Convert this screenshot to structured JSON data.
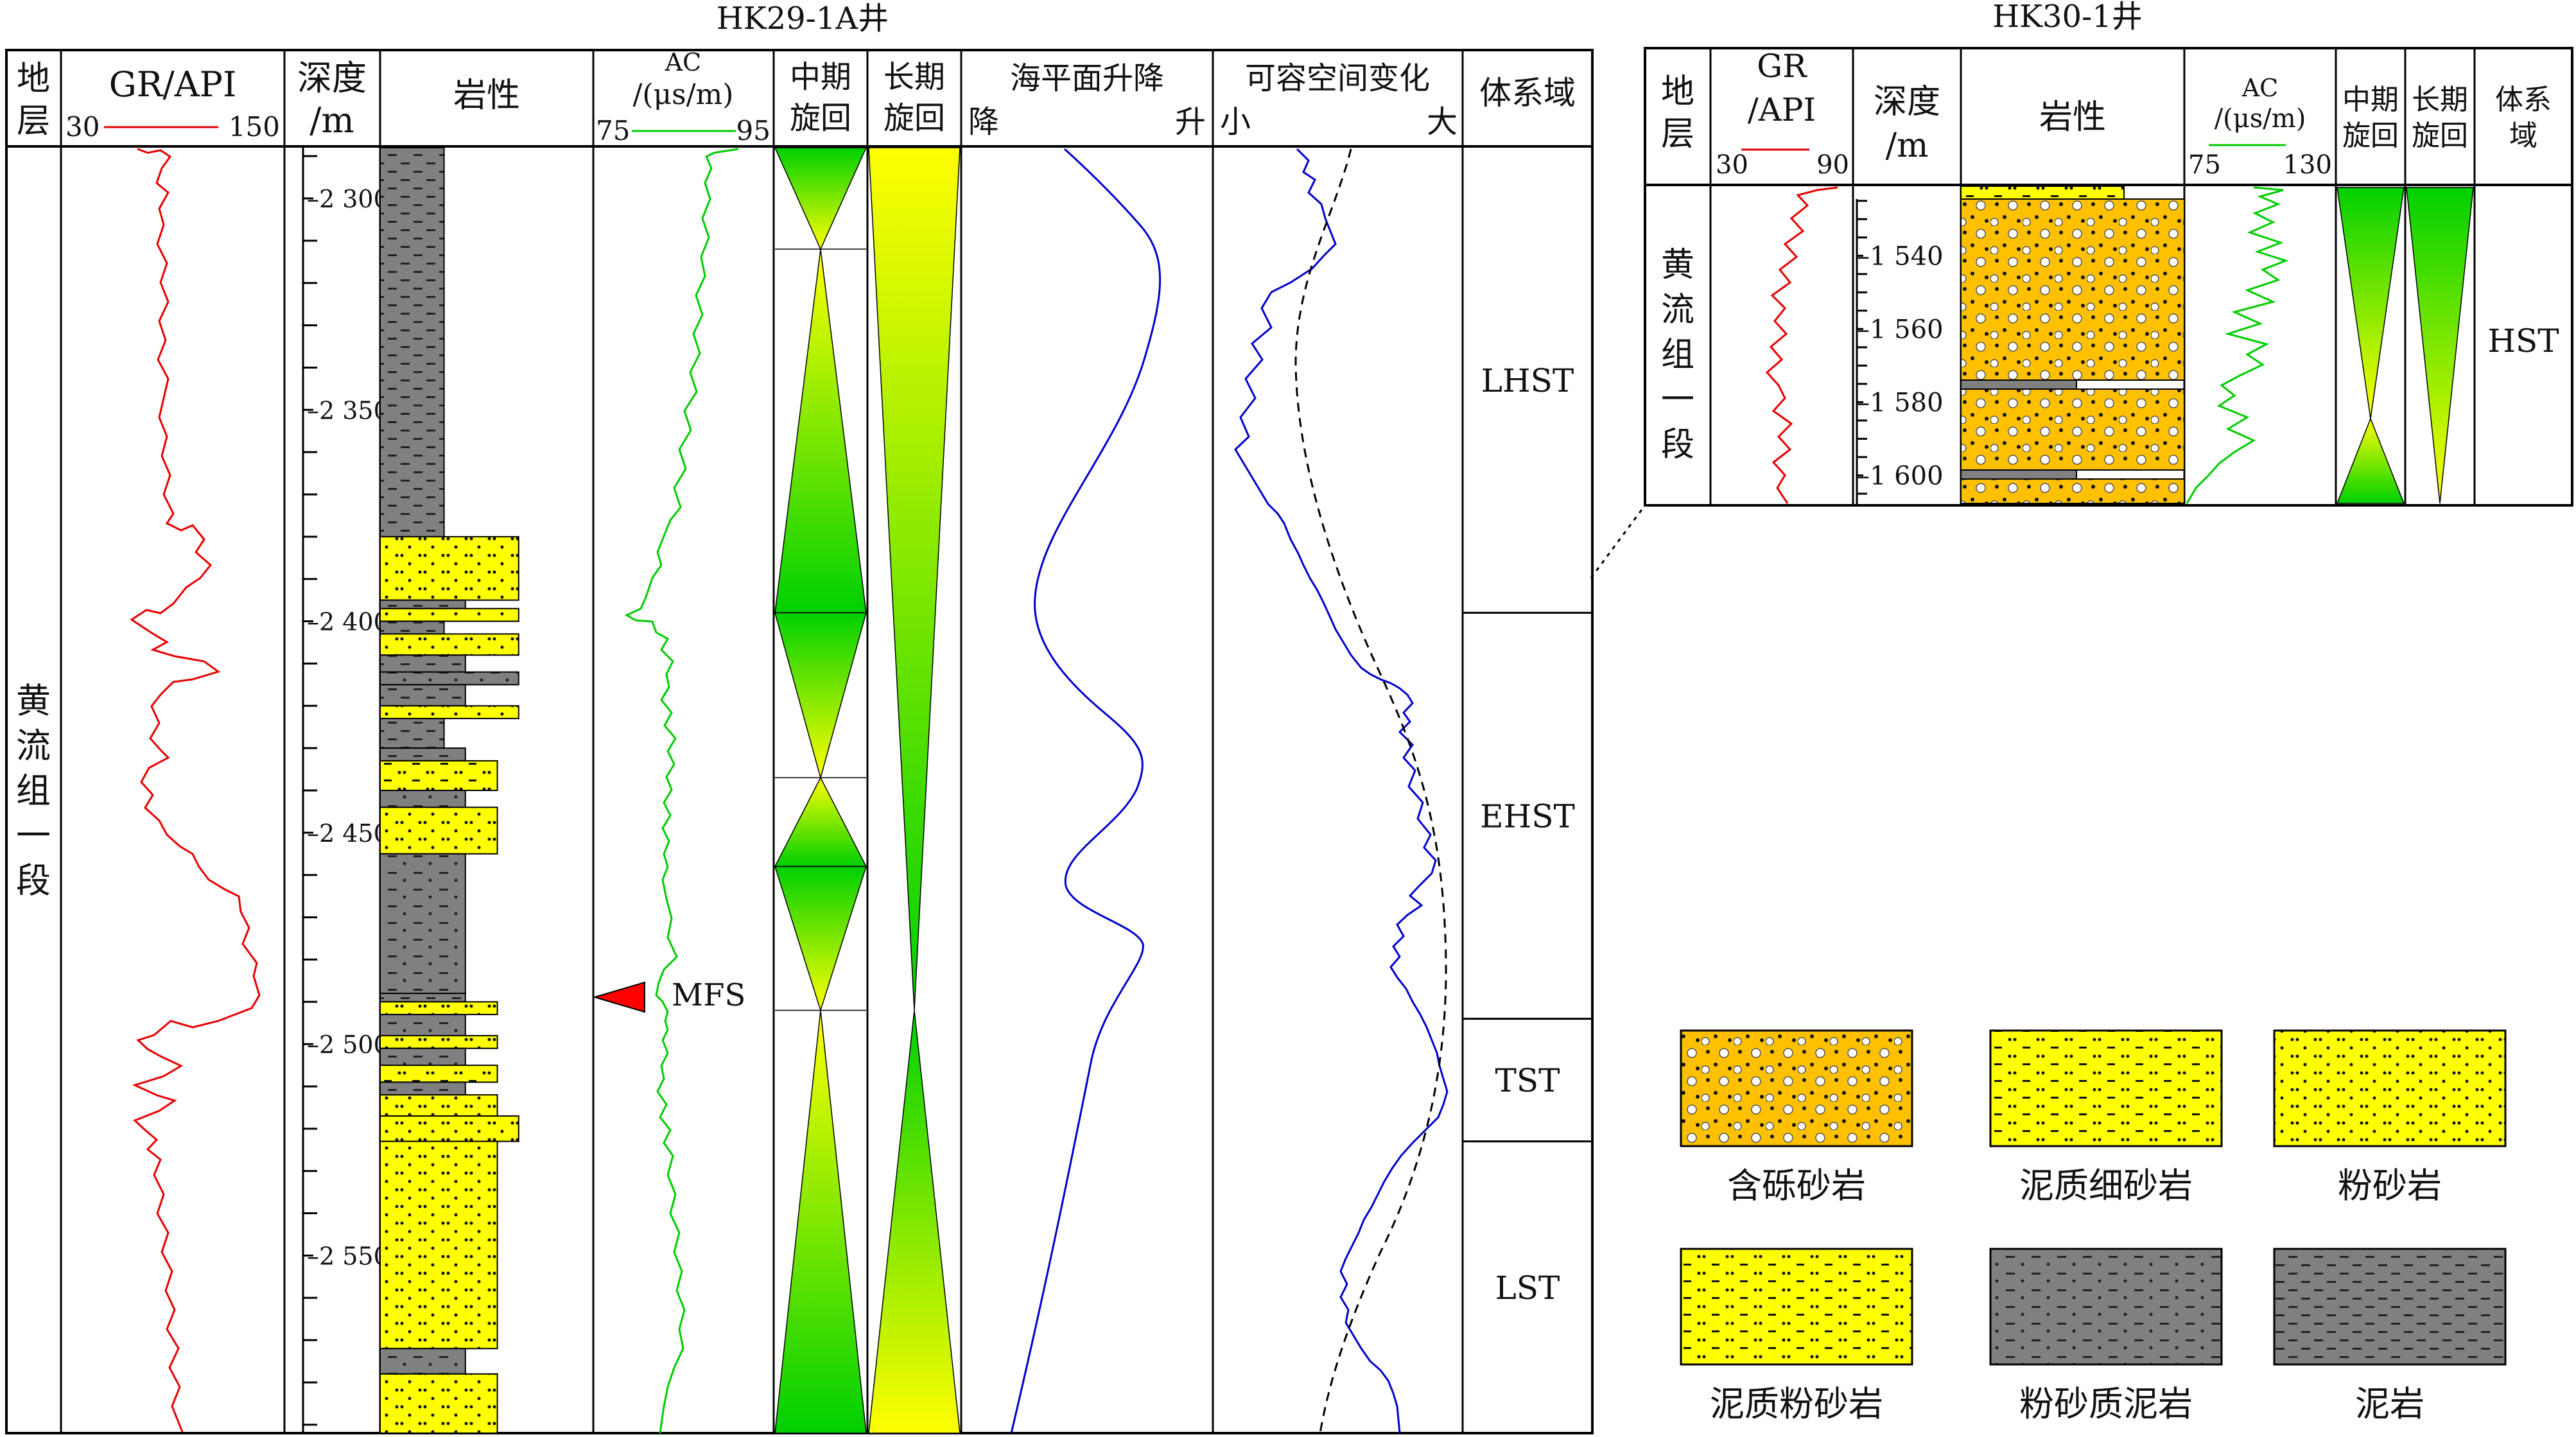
{
  "left_panel": {
    "title": "HK29-1A井",
    "headers": {
      "strata": "地层",
      "gr": "GR/API",
      "gr_min": "30",
      "gr_max": "150",
      "depth": "深度",
      "depth_unit": "/m",
      "lithology": "岩性",
      "ac": "AC",
      "ac_unit": "/(μs/m)",
      "ac_min": "75",
      "ac_max": "95",
      "mid_cycle": "中期旋回",
      "long_cycle": "长期旋回",
      "sea_level": "海平面升降",
      "sea_fall": "降",
      "sea_rise": "升",
      "accommodation": "可容空间变化",
      "acc_small": "小",
      "acc_large": "大",
      "systems_tract": "体系域"
    },
    "formation": "黄流组一段",
    "depth_ticks": [
      "2 300",
      "2 350",
      "2 400",
      "2 450",
      "2 500",
      "2 550"
    ],
    "depth_range_m": [
      2288,
      2592
    ],
    "mfs_label": "MFS",
    "mfs_depth_m": 2491,
    "systems_tracts": [
      {
        "label": "LHST",
        "top_m": 2288,
        "base_m": 2398
      },
      {
        "label": "EHST",
        "top_m": 2398,
        "base_m": 2494
      },
      {
        "label": "TST",
        "top_m": 2494,
        "base_m": 2523
      },
      {
        "label": "LST",
        "top_m": 2523,
        "base_m": 2592
      }
    ],
    "lithology_beds": [
      {
        "top_m": 2288,
        "base_m": 2380,
        "type": "mudstone",
        "width": 0.3
      },
      {
        "top_m": 2380,
        "base_m": 2395,
        "type": "siltstone",
        "width": 0.65
      },
      {
        "top_m": 2395,
        "base_m": 2397,
        "type": "silty_mudstone",
        "width": 0.4
      },
      {
        "top_m": 2397,
        "base_m": 2400,
        "type": "siltstone",
        "width": 0.65
      },
      {
        "top_m": 2400,
        "base_m": 2403,
        "type": "mudstone",
        "width": 0.3
      },
      {
        "top_m": 2403,
        "base_m": 2408,
        "type": "siltstone",
        "width": 0.65
      },
      {
        "top_m": 2408,
        "base_m": 2412,
        "type": "mudstone",
        "width": 0.4
      },
      {
        "top_m": 2412,
        "base_m": 2415,
        "type": "silty_mudstone",
        "width": 0.65
      },
      {
        "top_m": 2415,
        "base_m": 2420,
        "type": "mudstone",
        "width": 0.4
      },
      {
        "top_m": 2420,
        "base_m": 2423,
        "type": "siltstone",
        "width": 0.65
      },
      {
        "top_m": 2423,
        "base_m": 2430,
        "type": "mudstone",
        "width": 0.3
      },
      {
        "top_m": 2430,
        "base_m": 2433,
        "type": "silty_mudstone",
        "width": 0.4
      },
      {
        "top_m": 2433,
        "base_m": 2440,
        "type": "argillaceous_siltstone",
        "width": 0.55
      },
      {
        "top_m": 2440,
        "base_m": 2444,
        "type": "silty_mudstone",
        "width": 0.4
      },
      {
        "top_m": 2444,
        "base_m": 2455,
        "type": "siltstone",
        "width": 0.55
      },
      {
        "top_m": 2455,
        "base_m": 2488,
        "type": "silty_mudstone",
        "width": 0.4
      },
      {
        "top_m": 2488,
        "base_m": 2490,
        "type": "mudstone",
        "width": 0.4
      },
      {
        "top_m": 2490,
        "base_m": 2493,
        "type": "siltstone",
        "width": 0.55
      },
      {
        "top_m": 2493,
        "base_m": 2498,
        "type": "silty_mudstone",
        "width": 0.4
      },
      {
        "top_m": 2498,
        "base_m": 2501,
        "type": "siltstone",
        "width": 0.55
      },
      {
        "top_m": 2501,
        "base_m": 2505,
        "type": "silty_mudstone",
        "width": 0.4
      },
      {
        "top_m": 2505,
        "base_m": 2509,
        "type": "argillaceous_siltstone",
        "width": 0.55
      },
      {
        "top_m": 2509,
        "base_m": 2512,
        "type": "silty_mudstone",
        "width": 0.4
      },
      {
        "top_m": 2512,
        "base_m": 2517,
        "type": "siltstone",
        "width": 0.55
      },
      {
        "top_m": 2517,
        "base_m": 2523,
        "type": "siltstone",
        "width": 0.65
      },
      {
        "top_m": 2523,
        "base_m": 2572,
        "type": "siltstone",
        "width": 0.55
      },
      {
        "top_m": 2572,
        "base_m": 2578,
        "type": "silty_mudstone",
        "width": 0.4
      },
      {
        "top_m": 2578,
        "base_m": 2592,
        "type": "siltstone",
        "width": 0.55
      }
    ],
    "mid_cycle_boundaries_m": [
      2288,
      2312,
      2398,
      2437,
      2458,
      2492,
      2592
    ],
    "long_cycle_boundaries_m": [
      2288,
      2492,
      2592
    ]
  },
  "right_panel": {
    "title": "HK30-1井",
    "headers": {
      "strata": "地层",
      "gr": "GR",
      "gr_unit": "/API",
      "gr_min": "30",
      "gr_max": "90",
      "depth": "深度",
      "depth_unit": "/m",
      "lithology": "岩性",
      "ac": "AC",
      "ac_unit": "/(μs/m)",
      "ac_min": "75",
      "ac_max": "130",
      "mid_cycle": "中期旋回",
      "long_cycle": "长期旋回",
      "systems_tract": "体系域"
    },
    "formation": "黄流组一段",
    "depth_ticks": [
      "1 540",
      "1 560",
      "1 580",
      "1 600"
    ],
    "depth_range_m": [
      1521,
      1608
    ],
    "systems_tract": "HST"
  },
  "legend": {
    "items": [
      {
        "label": "含砾砂岩",
        "type": "pebbly_sandstone"
      },
      {
        "label": "泥质细砂岩",
        "type": "argillaceous_fine_sandstone"
      },
      {
        "label": "粉砂岩",
        "type": "siltstone"
      },
      {
        "label": "泥质粉砂岩",
        "type": "argillaceous_siltstone"
      },
      {
        "label": "粉砂质泥岩",
        "type": "silty_mudstone"
      },
      {
        "label": "泥岩",
        "type": "mudstone"
      }
    ]
  },
  "colors": {
    "gr_curve": "#e60000",
    "ac_curve": "#00cc00",
    "sea_level_curve": "#0000cc",
    "accommodation_curve": "#0000cc",
    "sand_yellow": "#ffff00",
    "pebbly_orange": "#ffc000",
    "mud_gray": "#808080",
    "mfs_marker": "#ff0000"
  }
}
